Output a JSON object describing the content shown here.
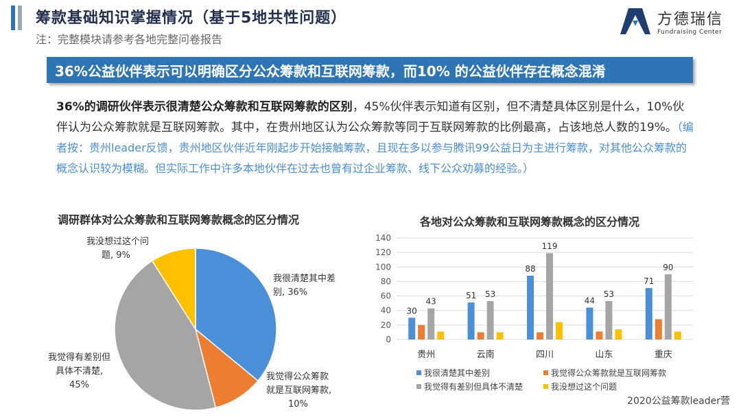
{
  "header": {
    "title": "筹款基础知识掌握情况（基于5地共性问题）",
    "note": "注：完整模块请参考各地完整问卷报告"
  },
  "logo": {
    "cn": "方德瑞信",
    "en": "Fundraising Center"
  },
  "banner": "36%公益伙伴表示可以明确区分公众筹款和互联网筹款，而10% 的公益伙伴存在概念混淆",
  "paragraph": {
    "bold": "36%的调研伙伴表示很清楚公众筹款和互联网筹款的区别",
    "normal": "，45%伙伴表示知道有区别，但不清楚具体区别是什么，10%伙伴认为公众筹款就是互联网筹款。其中，在贵州地区认为公众筹款等同于互联网筹款的比例最高，占该地总人数的19%。",
    "note": "（编者按：贵州leader反馈，贵州地区伙伴近年刚起步开始接触筹款，且现在多以参与腾讯99公益日为主进行筹款，对其他公众筹款的概念认识较为模糊。但实际工作中许多本地伙伴在过去也曾有过企业筹款、线下公众劝募的经验。）"
  },
  "colors": {
    "blue": "#4a90d9",
    "orange": "#ed7d31",
    "gray": "#a5a5a5",
    "yellow": "#ffc000"
  },
  "chart_data": [
    {
      "type": "pie",
      "title": "调研群体对公众筹款和互联网筹款概念的区分情况",
      "slices": [
        {
          "label_line1": "我很清楚其中差",
          "label_line2": "别, 36%",
          "value": 36,
          "color": "#4a90d9"
        },
        {
          "label_line1": "我觉得公众筹款",
          "label_line2": "就是互联网筹款,",
          "label_line3": "10%",
          "value": 10,
          "color": "#ed7d31"
        },
        {
          "label_line1": "我觉得有差别但",
          "label_line2": "具体不清楚,",
          "label_line3": "45%",
          "value": 45,
          "color": "#a5a5a5"
        },
        {
          "label_line1": "我没想过这个问",
          "label_line2": "题, 9%",
          "value": 9,
          "color": "#ffc000"
        }
      ]
    },
    {
      "type": "bar",
      "title": "各地对公众筹款和互联网筹款概念的区分情况",
      "categories": [
        "贵州",
        "云南",
        "四川",
        "山东",
        "重庆"
      ],
      "ylim": [
        0,
        140
      ],
      "yticks": [
        0,
        20,
        40,
        60,
        80,
        100,
        120,
        140
      ],
      "series": [
        {
          "name": "我很清楚其中差别",
          "values": [
            30,
            51,
            88,
            44,
            71
          ],
          "color": "#4a90d9",
          "labeled": true
        },
        {
          "name": "我觉得公众筹款就是互联网筹款",
          "values": [
            20,
            10,
            10,
            11,
            28
          ],
          "color": "#ed7d31",
          "labeled": false
        },
        {
          "name": "我觉得有差别但具体不清楚",
          "values": [
            43,
            53,
            119,
            53,
            90
          ],
          "color": "#a5a5a5",
          "labeled": true
        },
        {
          "name": "我没想过这个问题",
          "values": [
            11,
            10,
            24,
            14,
            11
          ],
          "color": "#ffc000",
          "labeled": false
        }
      ]
    }
  ],
  "watermark": "2020公益筹款leader营"
}
